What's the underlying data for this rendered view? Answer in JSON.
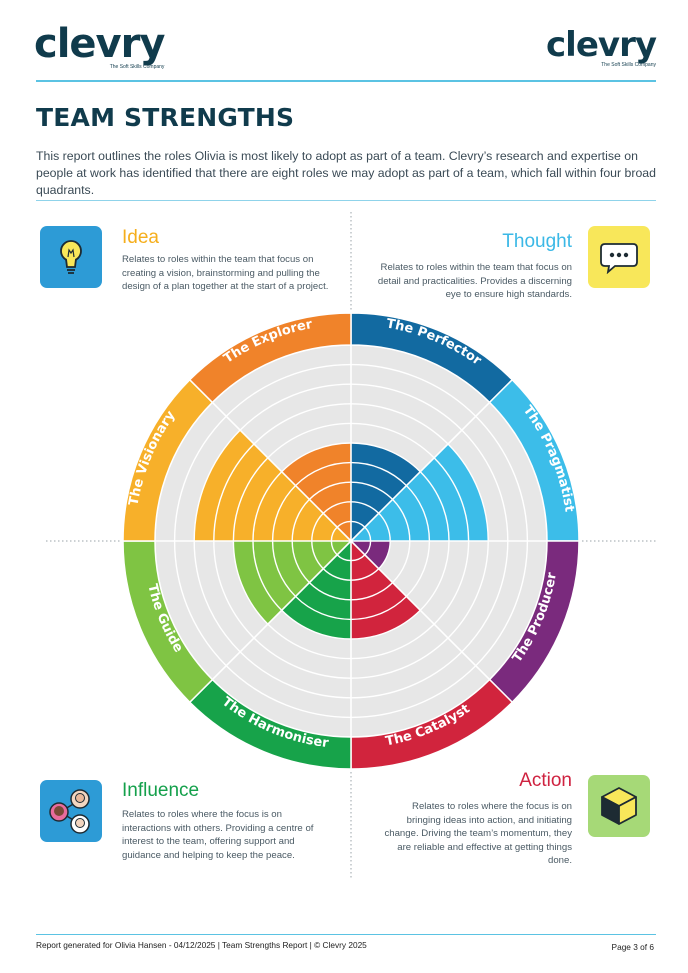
{
  "brand": {
    "name": "clevry",
    "tagline": "The Soft Skills Company"
  },
  "page": {
    "title": "TEAM STRENGTHS",
    "intro": "This report outlines the roles Olivia is most likely to adopt as part of a team. Clevry’s research and expertise on people at work has identified that there are eight roles we may adopt as part of a team, which fall within four broad quadrants."
  },
  "quadrants": {
    "idea": {
      "title": "Idea",
      "icon": "lightbulb-icon",
      "description": "Relates to roles within the team that focus on creating a vision, brainstorming and pulling the design of a plan together at the start of a project."
    },
    "thought": {
      "title": "Thought",
      "icon": "speech-bubble-icon",
      "description": "Relates to roles within the team that focus on detail and practicalities. Provides a discerning eye to ensure high standards."
    },
    "influence": {
      "title": "Influence",
      "icon": "people-network-icon",
      "description": "Relates to roles where the focus is on interactions with others. Providing a centre of interest to the team, offering support and guidance and helping to keep the peace."
    },
    "action": {
      "title": "Action",
      "icon": "cube-icon",
      "description": "Relates to roles where the focus is on bringing ideas into action, and initiating change. Driving the team’s momentum, they are reliable and effective at getting things done."
    }
  },
  "chart_data": {
    "type": "polar-area",
    "rings": 10,
    "roles": [
      {
        "name": "The Perfector",
        "quadrant": "Thought",
        "value": 5,
        "color": "#126aa1"
      },
      {
        "name": "The Pragmatist",
        "quadrant": "Thought",
        "value": 7,
        "color": "#3cbde9"
      },
      {
        "name": "The Producer",
        "quadrant": "Action",
        "value": 2,
        "color": "#7a2a7d"
      },
      {
        "name": "The Catalyst",
        "quadrant": "Action",
        "value": 5,
        "color": "#d1243d"
      },
      {
        "name": "The Harmoniser",
        "quadrant": "Influence",
        "value": 5,
        "color": "#17a34a"
      },
      {
        "name": "The Guide",
        "quadrant": "Influence",
        "value": 6,
        "color": "#7fc443"
      },
      {
        "name": "The Visionary",
        "quadrant": "Idea",
        "value": 8,
        "color": "#f7b02a"
      },
      {
        "name": "The Explorer",
        "quadrant": "Idea",
        "value": 5,
        "color": "#f0832a"
      }
    ]
  },
  "footer": {
    "left": "Report generated for Olivia Hansen - 04/12/2025 | Team Strengths Report | © Clevry 2025",
    "right": "Page 3 of 6"
  }
}
